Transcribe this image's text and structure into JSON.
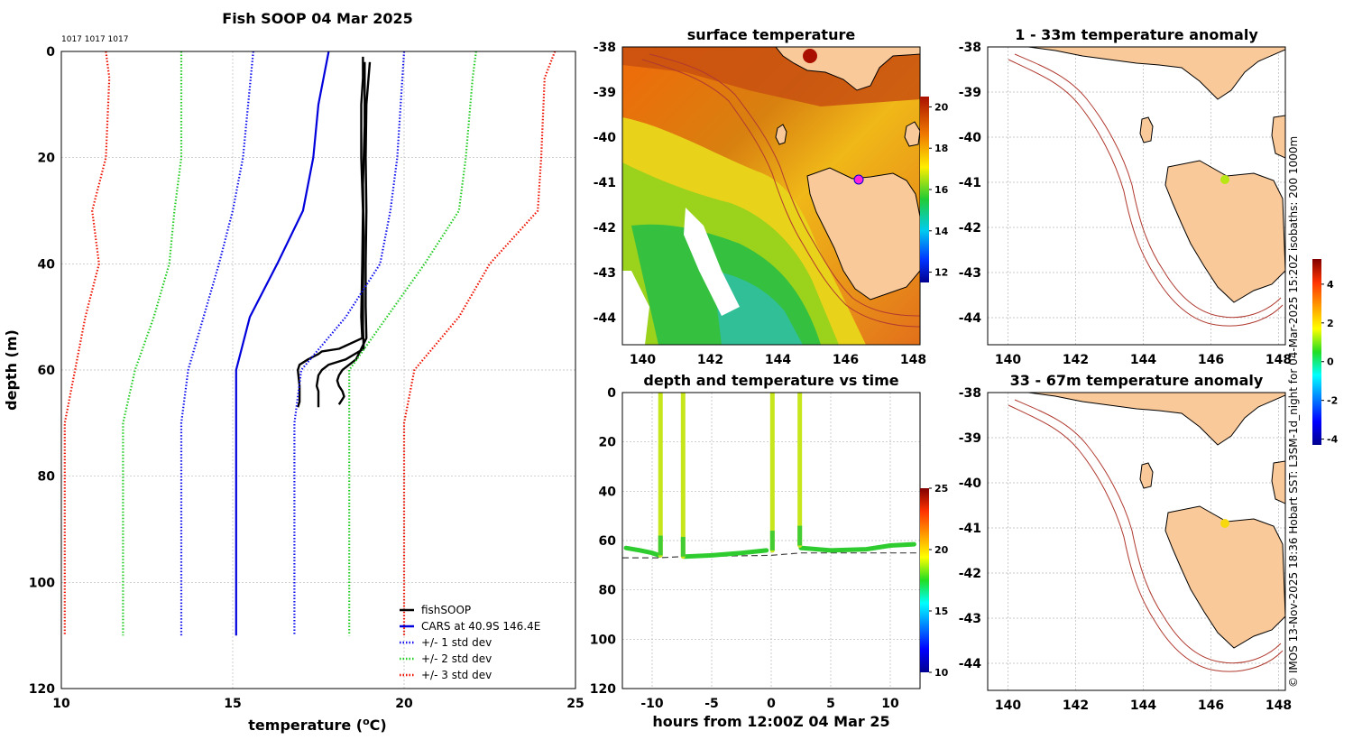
{
  "main_title": "Fish SOOP 04 Mar 2025",
  "profile_ids": "1017 1017 1017",
  "credit": "© IMOS 13-Nov-2025 18:36 Hobart SST: L3SM-1d_night for 04-Mar-2025 15:20Z isobaths: 200  1000m",
  "colors": {
    "fishSOOP": "#000000",
    "cars": "#0000dd",
    "std1": "#1010ee",
    "std2": "#22cc22",
    "std3": "#ee1100",
    "land": "#f9c99a",
    "isobath": "#b03a30",
    "marker_magenta": "#ff22dd"
  },
  "chart_data": [
    {
      "id": "profile",
      "type": "line",
      "title": "",
      "xlabel_main": "temperature (",
      "xlabel_sup": "o",
      "xlabel_end": "C)",
      "ylabel": "depth (m)",
      "xlim": [
        10,
        25
      ],
      "ylim": [
        0,
        120
      ],
      "y_inverted": true,
      "xticks": [
        "10",
        "15",
        "20",
        "25"
      ],
      "yticks": [
        "0",
        "20",
        "40",
        "60",
        "80",
        "100",
        "120"
      ],
      "series": [
        {
          "name": "fishSOOP",
          "style": "solid",
          "color": "#000000",
          "x": [
            18.8,
            18.8,
            18.75,
            18.75,
            18.8,
            18.78,
            18.75,
            18.78,
            18.1,
            17.6,
            17.5,
            17.2,
            16.95,
            16.9,
            16.95,
            16.95,
            16.9
          ],
          "y": [
            1,
            5,
            10,
            20,
            30,
            40,
            50,
            54,
            56,
            56.5,
            57,
            58,
            59,
            60,
            63,
            66,
            67
          ]
        },
        {
          "name": "fishSOOP",
          "style": "solid",
          "color": "#000000",
          "x": [
            18.85,
            18.85,
            18.85,
            18.8,
            18.82,
            18.8,
            18.8,
            18.82,
            18.3,
            17.8,
            17.6,
            17.5,
            17.45,
            17.5,
            17.5
          ],
          "y": [
            2,
            8,
            14,
            25,
            35,
            45,
            52,
            56,
            58,
            59,
            60,
            61,
            63,
            64,
            67
          ]
        },
        {
          "name": "fishSOOP",
          "style": "solid",
          "color": "#000000",
          "x": [
            19.0,
            18.95,
            18.9,
            18.88,
            18.9,
            18.88,
            18.88,
            18.9,
            18.6,
            18.2,
            18.1,
            18.05,
            18.1,
            18.2,
            18.25,
            18.15,
            18.1
          ],
          "y": [
            2,
            6,
            10,
            20,
            30,
            40,
            48,
            54,
            58,
            60,
            61,
            62,
            63,
            64,
            65,
            66,
            66.5
          ]
        },
        {
          "name": "CARS at 40.9S 146.4E",
          "style": "solid",
          "color": "#0000dd",
          "x": [
            17.8,
            17.65,
            17.5,
            17.35,
            17.05,
            16.3,
            15.5,
            15.1,
            15.1,
            15.1,
            15.1
          ],
          "y": [
            0,
            5,
            10,
            20,
            30,
            40,
            50,
            60,
            70,
            90,
            110
          ]
        },
        {
          "name": "+/- 1 std dev",
          "style": "dotted",
          "color": "#1010ee",
          "x": [
            15.6,
            15.45,
            15.3,
            15.0,
            14.6,
            14.15,
            13.7,
            13.5,
            13.5,
            13.5
          ],
          "y": [
            0,
            10,
            20,
            30,
            40,
            50,
            60,
            70,
            90,
            110
          ]
        },
        {
          "name": "+/- 1 std dev",
          "style": "dotted",
          "color": "#1010ee",
          "x": [
            20.0,
            19.9,
            19.8,
            19.6,
            19.3,
            18.3,
            17.0,
            16.8,
            16.8,
            16.8
          ],
          "y": [
            0,
            10,
            20,
            30,
            40,
            50,
            60,
            70,
            90,
            110
          ]
        },
        {
          "name": "+/- 2 std dev",
          "style": "dotted",
          "color": "#22cc22",
          "x": [
            13.5,
            13.5,
            13.5,
            13.3,
            13.15,
            12.7,
            12.15,
            11.8,
            11.8,
            11.8
          ],
          "y": [
            0,
            5,
            20,
            30,
            40,
            50,
            60,
            70,
            90,
            110
          ]
        },
        {
          "name": "+/- 2 std dev",
          "style": "dotted",
          "color": "#22cc22",
          "x": [
            22.1,
            22.0,
            21.8,
            21.6,
            20.6,
            19.5,
            18.4,
            18.4,
            18.4
          ],
          "y": [
            0,
            5,
            20,
            30,
            40,
            50,
            60,
            70,
            110
          ]
        },
        {
          "name": "+/- 3 std dev",
          "style": "dotted",
          "color": "#ee1100",
          "x": [
            11.3,
            11.4,
            11.3,
            10.9,
            11.1,
            10.7,
            10.4,
            10.1,
            10.1,
            10.1
          ],
          "y": [
            0,
            5,
            20,
            30,
            40,
            50,
            60,
            70,
            90,
            110
          ]
        },
        {
          "name": "+/- 3 std dev",
          "style": "dotted",
          "color": "#ee1100",
          "x": [
            24.4,
            24.1,
            24.0,
            23.9,
            22.5,
            21.6,
            20.3,
            20.0,
            20.0,
            20.0
          ],
          "y": [
            0,
            5,
            20,
            30,
            40,
            50,
            60,
            70,
            90,
            110
          ]
        }
      ],
      "legend": [
        {
          "name": "fishSOOP",
          "color": "#000000",
          "style": "solid"
        },
        {
          "name": "CARS at 40.9S 146.4E",
          "color": "#0000dd",
          "style": "solid"
        },
        {
          "name": "+/- 1 std dev",
          "color": "#1010ee",
          "style": "dotted"
        },
        {
          "name": "+/- 2 std dev",
          "color": "#22cc22",
          "style": "dotted"
        },
        {
          "name": "+/- 3 std dev",
          "color": "#ee1100",
          "style": "dotted"
        }
      ],
      "legend_position": "bottom-right"
    },
    {
      "id": "sst",
      "type": "heatmap",
      "title": "surface temperature",
      "xlim": [
        139.4,
        148.2
      ],
      "ylim": [
        -44.6,
        -38
      ],
      "xticks": [
        "140",
        "142",
        "144",
        "146",
        "148"
      ],
      "yticks": [
        "-38",
        "-39",
        "-40",
        "-41",
        "-42",
        "-43",
        "-44"
      ],
      "colorbar": {
        "min": 11.5,
        "max": 20.5,
        "ticks": [
          "12",
          "14",
          "16",
          "18",
          "20"
        ]
      },
      "marker": {
        "lon": 146.4,
        "lat": -40.95
      }
    },
    {
      "id": "depth_time",
      "type": "scatter",
      "title": "depth and temperature vs time",
      "xlabel": "hours from 12:00Z 04 Mar 25",
      "xlim": [
        -12.5,
        12.5
      ],
      "ylim": [
        0,
        120
      ],
      "y_inverted": true,
      "xticks": [
        "-10",
        "-5",
        "0",
        "5",
        "10"
      ],
      "yticks": [
        "0",
        "20",
        "40",
        "60",
        "80",
        "100",
        "120"
      ],
      "colorbar": {
        "min": 10,
        "max": 25,
        "ticks": [
          "10",
          "15",
          "20",
          "25"
        ]
      },
      "bottom_depth_line": {
        "x": [
          -12.5,
          -9.5,
          -7.5,
          0,
          2.5,
          12.5
        ],
        "y": [
          67,
          67,
          66.5,
          66,
          65,
          65
        ]
      }
    },
    {
      "id": "anom_shallow",
      "type": "heatmap",
      "title": "1 - 33m temperature anomaly",
      "xlim": [
        139.4,
        148.2
      ],
      "ylim": [
        -44.6,
        -38
      ],
      "xticks": [
        "140",
        "142",
        "144",
        "146",
        "148"
      ],
      "yticks": [
        "-38",
        "-39",
        "-40",
        "-41",
        "-42",
        "-43",
        "-44"
      ],
      "marker": {
        "lon": 146.4,
        "lat": -40.95,
        "anomaly": 1.1
      }
    },
    {
      "id": "anom_deep",
      "type": "heatmap",
      "title": "33 - 67m temperature anomaly",
      "xlim": [
        139.4,
        148.2
      ],
      "ylim": [
        -44.6,
        -38
      ],
      "xticks": [
        "140",
        "142",
        "144",
        "146",
        "148"
      ],
      "yticks": [
        "-38",
        "-39",
        "-40",
        "-41",
        "-42",
        "-43",
        "-44"
      ],
      "marker": {
        "lon": 146.4,
        "lat": -40.95,
        "anomaly": 2.1
      },
      "colorbar": {
        "min": -4.3,
        "max": 5.3,
        "ticks": [
          "-4",
          "-2",
          "0",
          "2",
          "4"
        ]
      }
    }
  ]
}
